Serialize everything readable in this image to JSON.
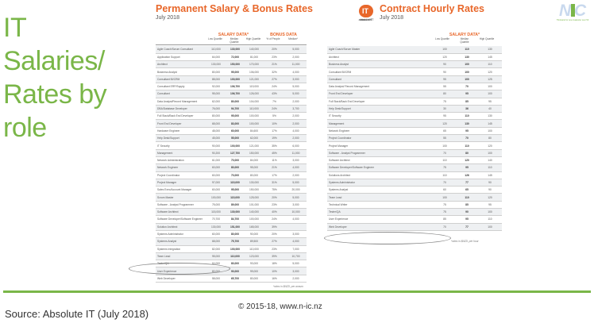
{
  "slide": {
    "title": "IT Salaries/\nRates by\nrole",
    "source": "Source: Absolute IT (July 2018)",
    "copyright": "© 2015-18, www.n-ic.nz",
    "accent_color": "#7ab648",
    "nic_logo": {
      "word": "NIC",
      "tagline": "Thinktank for new zealander over 50"
    }
  },
  "permanent": {
    "title": "Permanent Salary & Bonus Rates",
    "date": "July 2018",
    "title_color": "#e8672a",
    "logo": {
      "mark": "IT",
      "label": "absoluteIT",
      "icon": "absolute-it-logo"
    },
    "salary_header": "SALARY DATA*",
    "bonus_header": "BONUS DATA",
    "col_low": "Low Quartile",
    "col_median": "Median Quartile",
    "col_high": "High Quartile",
    "col_pct": "% of People",
    "col_median_bonus": "Median*",
    "note": "*rates in $NZD, per annum",
    "highlighted_role": "Tester/QA",
    "rows": [
      [
        "Agile Coach/Scrum Consultant",
        "110,000",
        "130,000",
        "140,000",
        "20%",
        "5,000"
      ],
      [
        "Application Support",
        "64,000",
        "72,000",
        "81,000",
        "23%",
        "2,000"
      ],
      [
        "Architect",
        "130,000",
        "150,000",
        "170,000",
        "21%",
        "11,000"
      ],
      [
        "Business Analyst",
        "80,000",
        "95,000",
        "106,000",
        "32%",
        "4,000"
      ],
      [
        "Consultant BI/CRM",
        "88,000",
        "100,000",
        "121,000",
        "27%",
        "3,000"
      ],
      [
        "Consultant ERP/Supply",
        "92,000",
        "106,700",
        "119,000",
        "24%",
        "5,000"
      ],
      [
        "Consultant",
        "95,000",
        "106,700",
        "126,000",
        "43%",
        "5,000"
      ],
      [
        "Data Analyst/Record Management",
        "62,000",
        "80,000",
        "104,000",
        "7%",
        "2,000"
      ],
      [
        "DBA/Database Developer",
        "76,000",
        "94,700",
        "110,000",
        "24%",
        "3,700"
      ],
      [
        "Full Stack/Back End Developer",
        "80,000",
        "95,000",
        "100,000",
        "5%",
        "2,000"
      ],
      [
        "Front End Developer",
        "68,000",
        "83,000",
        "100,000",
        "10%",
        "2,000"
      ],
      [
        "Hardware Engineer",
        "48,000",
        "60,000",
        "84,600",
        "17%",
        "4,000"
      ],
      [
        "Help Desk/Support",
        "45,000",
        "55,000",
        "62,000",
        "19%",
        "2,000"
      ],
      [
        "IT Security",
        "90,000",
        "100,000",
        "121,000",
        "35%",
        "6,000"
      ],
      [
        "Management",
        "90,200",
        "127,700",
        "150,000",
        "45%",
        "11,000"
      ],
      [
        "Network Administration",
        "61,000",
        "70,000",
        "84,000",
        "11%",
        "3,000"
      ],
      [
        "Network Engineer",
        "60,000",
        "80,000",
        "95,000",
        "21%",
        "4,000"
      ],
      [
        "Project Coordinator",
        "60,000",
        "70,000",
        "80,000",
        "17%",
        "2,000"
      ],
      [
        "Project Manager",
        "97,000",
        "115,000",
        "130,000",
        "31%",
        "5,000"
      ],
      [
        "Sales Exec/Account Manager",
        "60,000",
        "95,000",
        "150,000",
        "75%",
        "20,000"
      ],
      [
        "Scrum Master",
        "100,000",
        "115,000",
        "125,000",
        "20%",
        "5,000"
      ],
      [
        "Software - Analyst Programmer",
        "75,000",
        "89,000",
        "101,000",
        "23%",
        "3,000"
      ],
      [
        "Software Architect",
        "115,000",
        "130,000",
        "140,000",
        "40%",
        "10,000"
      ],
      [
        "Software Developer/Software Engineer",
        "70,700",
        "84,700",
        "100,000",
        "24%",
        "4,000"
      ],
      [
        "Solution Architect",
        "130,000",
        "151,000",
        "165,000",
        "39%",
        ""
      ],
      [
        "Systems Administrator",
        "60,000",
        "80,000",
        "90,000",
        "20%",
        "3,000"
      ],
      [
        "Systems Analyst",
        "68,000",
        "75,700",
        "89,500",
        "27%",
        "4,000"
      ],
      [
        "Systems Integration",
        "82,000",
        "100,000",
        "110,000",
        "23%",
        "7,000"
      ],
      [
        "Team Lead",
        "95,000",
        "110,000",
        "123,000",
        "39%",
        "10,700"
      ],
      [
        "Tester/QA",
        "64,000",
        "80,000",
        "93,000",
        "18%",
        "5,000"
      ],
      [
        "User Experience",
        "80,000",
        "90,000",
        "99,000",
        "10%",
        "3,000"
      ],
      [
        "Web Developer",
        "58,000",
        "65,700",
        "80,000",
        "16%",
        "2,000"
      ]
    ]
  },
  "contract": {
    "title": "Contract Hourly Rates",
    "date": "July 2018",
    "title_color": "#e8672a",
    "logo": {
      "mark": "IT",
      "label": "absoluteIT",
      "icon": "absolute-it-logo"
    },
    "salary_header": "SALARY DATA*",
    "col_low": "Low Quartile",
    "col_median": "Median Quartile",
    "col_high": "High Quartile",
    "note": "*rates in $NZD, per hour",
    "highlighted_role": "User Experience",
    "rows": [
      [
        "Agile Coach/Scrum Master",
        "100",
        "110",
        "130"
      ],
      [
        "Architect",
        "120",
        "130",
        "145"
      ],
      [
        "Business Analyst",
        "90",
        "100",
        "110"
      ],
      [
        "Consultant BI/CRM",
        "90",
        "100",
        "120"
      ],
      [
        "Consultant",
        "95",
        "100",
        "125"
      ],
      [
        "Data Analyst/ Record Management",
        "55",
        "70",
        "100"
      ],
      [
        "Front End Developer",
        "80",
        "95",
        "100"
      ],
      [
        "Full Stack/Back End Developer",
        "75",
        "85",
        "95"
      ],
      [
        "Help Desk/Support",
        "30",
        "36",
        "40"
      ],
      [
        "IT Security",
        "95",
        "110",
        "130"
      ],
      [
        "Management",
        "120",
        "130",
        "145"
      ],
      [
        "Network Engineer",
        "65",
        "95",
        "100"
      ],
      [
        "Project Coordinator",
        "55",
        "70",
        "80"
      ],
      [
        "Project Manager",
        "100",
        "110",
        "120"
      ],
      [
        "Software - Analyst Programmer",
        "70",
        "80",
        "100"
      ],
      [
        "Software Architect",
        "110",
        "120",
        "140"
      ],
      [
        "Software Developer/Software Engineer",
        "75",
        "95",
        "110"
      ],
      [
        "Solutions Architect",
        "110",
        "126",
        "145"
      ],
      [
        "Systems Administrator",
        "70",
        "77",
        "90"
      ],
      [
        "Systems Analyst",
        "60",
        "65",
        "90"
      ],
      [
        "Team Lead",
        "100",
        "110",
        "120"
      ],
      [
        "Technical Writer",
        "75",
        "85",
        "95"
      ],
      [
        "Tester/QA",
        "75",
        "90",
        "100"
      ],
      [
        "User Experience",
        "85",
        "95",
        "110"
      ],
      [
        "Web Developer",
        "70",
        "77",
        "100"
      ]
    ]
  }
}
